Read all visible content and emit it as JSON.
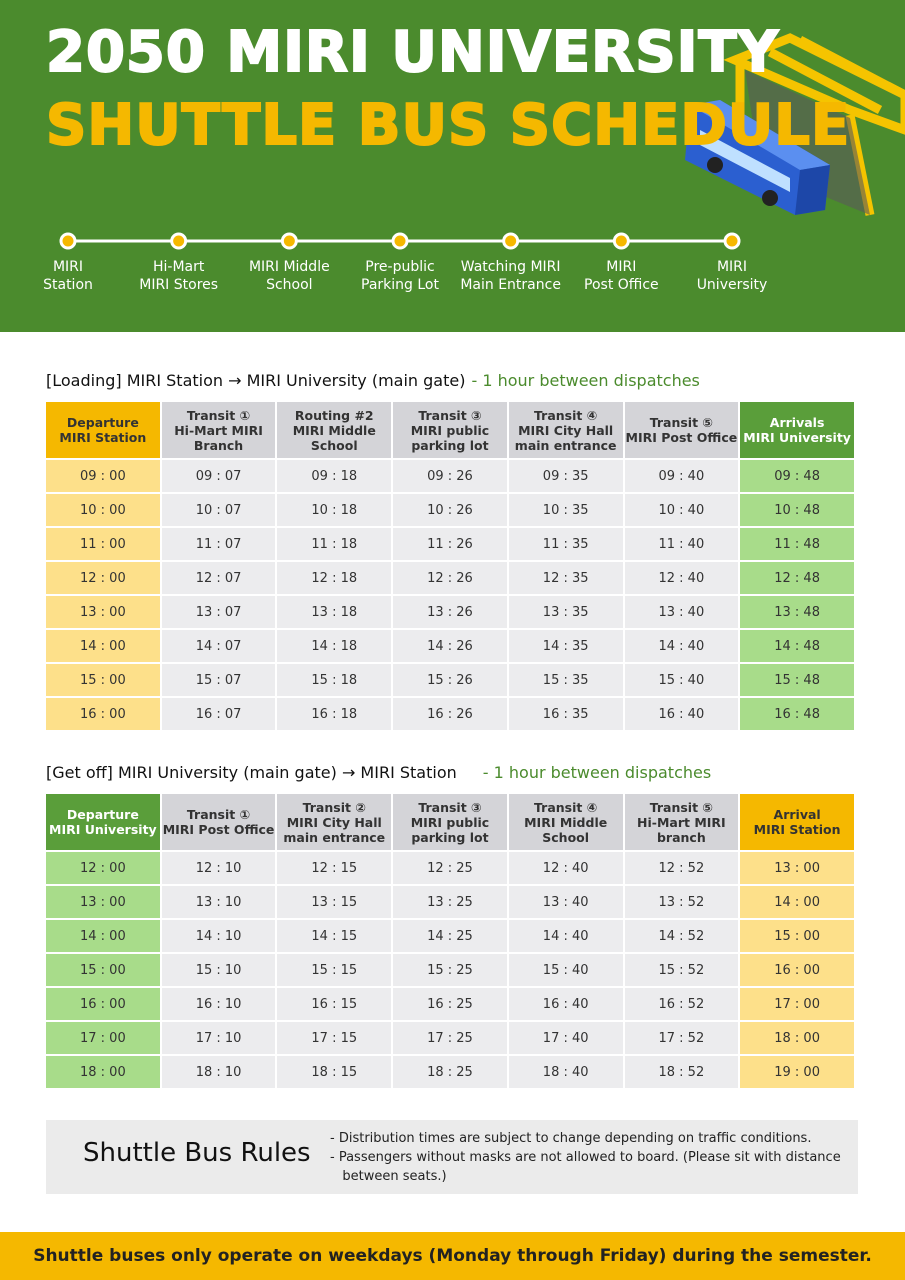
{
  "header": {
    "title_line1": "2050 MIRI UNIVERSITY",
    "title_line2": "SHUTTLE BUS SCHEDULE"
  },
  "route": {
    "stops": [
      "MIRI\nStation",
      "Hi-Mart\nMIRI Stores",
      "MIRI Middle\nSchool",
      "Pre-public\nParking Lot",
      "Watching MIRI\nMain Entrance",
      "MIRI\nPost Office",
      "MIRI\nUniversity"
    ]
  },
  "table1": {
    "heading": "[Loading] MIRI Station → MIRI University (main gate)",
    "note": "- 1 hour between dispatches",
    "header": [
      "Departure\nMIRI Station",
      "Transit ①\nHi-Mart MIRI\nBranch",
      "Routing #2\nMIRI Middle\nSchool",
      "Transit ③\nMIRI public\nparking lot",
      "Transit ④\nMIRI City Hall\nmain entrance",
      "Transit ⑤\nMIRI Post Office",
      "Arrivals\nMIRI University"
    ],
    "rows": [
      [
        "09 : 00",
        "09 : 07",
        "09 : 18",
        "09 : 26",
        "09 : 35",
        "09 : 40",
        "09 : 48"
      ],
      [
        "10 : 00",
        "10 : 07",
        "10 : 18",
        "10 : 26",
        "10 : 35",
        "10 : 40",
        "10 : 48"
      ],
      [
        "11 : 00",
        "11 : 07",
        "11 : 18",
        "11 : 26",
        "11 : 35",
        "11 : 40",
        "11 : 48"
      ],
      [
        "12 : 00",
        "12 : 07",
        "12 : 18",
        "12 : 26",
        "12 : 35",
        "12 : 40",
        "12 : 48"
      ],
      [
        "13 : 00",
        "13 : 07",
        "13 : 18",
        "13 : 26",
        "13 : 35",
        "13 : 40",
        "13 : 48"
      ],
      [
        "14 : 00",
        "14 : 07",
        "14 : 18",
        "14 : 26",
        "14 : 35",
        "14 : 40",
        "14 : 48"
      ],
      [
        "15 : 00",
        "15 : 07",
        "15 : 18",
        "15 : 26",
        "15 : 35",
        "15 : 40",
        "15 : 48"
      ],
      [
        "16 : 00",
        "16 : 07",
        "16 : 18",
        "16 : 26",
        "16 : 35",
        "16 : 40",
        "16 : 48"
      ]
    ]
  },
  "table2": {
    "heading": "[Get off] MIRI University (main gate) → MIRI Station",
    "note": "- 1 hour between dispatches",
    "header": [
      "Departure\nMIRI University",
      "Transit ①\nMIRI Post Office",
      "Transit ②\nMIRI City Hall\nmain entrance",
      "Transit ③\nMIRI public\nparking lot",
      "Transit ④\nMIRI Middle\nSchool",
      "Transit ⑤\nHi-Mart MIRI\nbranch",
      "Arrival\nMIRI Station"
    ],
    "rows": [
      [
        "12 : 00",
        "12 : 10",
        "12 : 15",
        "12 : 25",
        "12 : 40",
        "12 : 52",
        "13 : 00"
      ],
      [
        "13 : 00",
        "13 : 10",
        "13 : 15",
        "13 : 25",
        "13 : 40",
        "13 : 52",
        "14 : 00"
      ],
      [
        "14 : 00",
        "14 : 10",
        "14 : 15",
        "14 : 25",
        "14 : 40",
        "14 : 52",
        "15 : 00"
      ],
      [
        "15 : 00",
        "15 : 10",
        "15 : 15",
        "15 : 25",
        "15 : 40",
        "15 : 52",
        "16 : 00"
      ],
      [
        "16 : 00",
        "16 : 10",
        "16 : 15",
        "16 : 25",
        "16 : 40",
        "16 : 52",
        "17 : 00"
      ],
      [
        "17 : 00",
        "17 : 10",
        "17 : 15",
        "17 : 25",
        "17 : 40",
        "17 : 52",
        "18 : 00"
      ],
      [
        "18 : 00",
        "18 : 10",
        "18 : 15",
        "18 : 25",
        "18 : 40",
        "18 : 52",
        "19 : 00"
      ]
    ]
  },
  "rules": {
    "title": "Shuttle Bus Rules",
    "items": [
      "- Distribution times are subject to change depending on traffic conditions.",
      "- Passengers without masks are not allowed to board. (Please sit with distance\n   between seats.)"
    ]
  },
  "footer": {
    "text": "Shuttle buses only operate on weekdays (Monday through Friday) during the semester."
  }
}
